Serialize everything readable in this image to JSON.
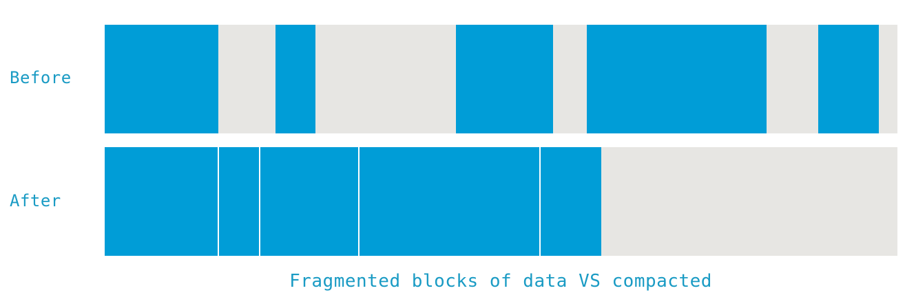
{
  "labels": {
    "before": "Before",
    "after": "After"
  },
  "caption": "Fragmented blocks of data VS compacted",
  "colors": {
    "data_block": "#009dd7",
    "free_space": "#e7e6e3",
    "text": "#1a9bc4"
  }
}
